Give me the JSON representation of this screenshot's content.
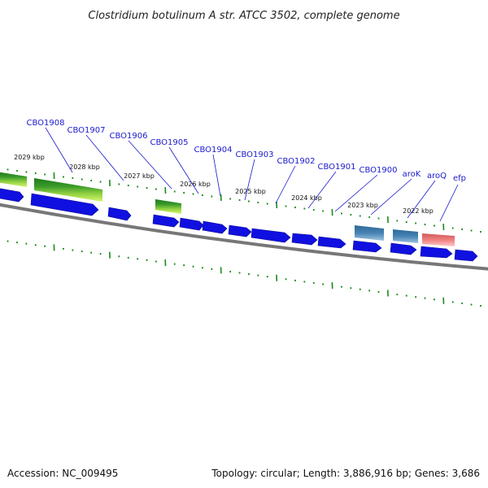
{
  "title": "Clostridium botulinum A str. ATCC 3502, complete genome",
  "footer": {
    "accession": "Accession: NC_009495",
    "topology": "Topology: circular; Length: 3,886,916 bp; Genes: 3,686"
  },
  "colors": {
    "forward_gene": "#1010e0",
    "blast_green_dark": "#1f7a1f",
    "blast_green_light": "#c8f060",
    "steel_blue": "#4682b4",
    "salmon": "#f08080",
    "backbone": "#777777",
    "tick": "#1a8a1a",
    "label_blue": "#1a1acc"
  },
  "scale": {
    "kbp_labels": [
      "2029 kbp",
      "2028 kbp",
      "2027 kbp",
      "2026 kbp",
      "2025 kbp",
      "2024 kbp",
      "2023 kbp",
      "2022 kbp"
    ]
  },
  "genes": [
    {
      "name": "CBO1908"
    },
    {
      "name": "CBO1907"
    },
    {
      "name": "CBO1906"
    },
    {
      "name": "CBO1905"
    },
    {
      "name": "CBO1904"
    },
    {
      "name": "CBO1903"
    },
    {
      "name": "CBO1902"
    },
    {
      "name": "CBO1901"
    },
    {
      "name": "CBO1900"
    },
    {
      "name": "aroK"
    },
    {
      "name": "aroQ"
    },
    {
      "name": "efp"
    }
  ]
}
